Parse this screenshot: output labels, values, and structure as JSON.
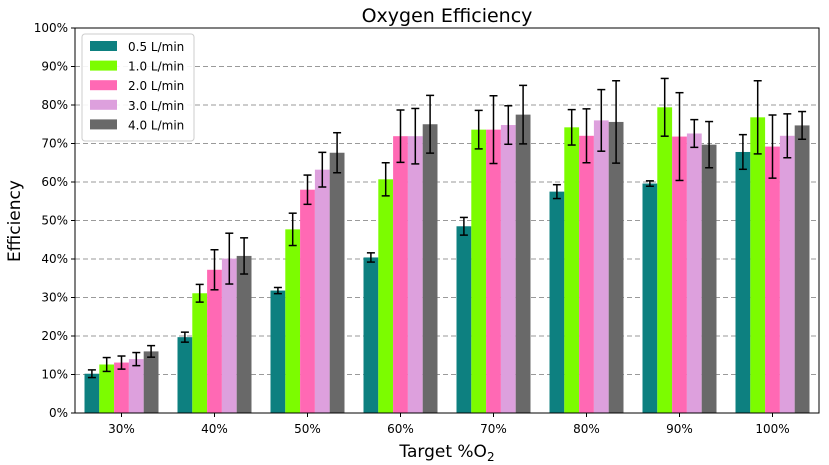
{
  "chart_data": {
    "type": "bar",
    "title": "Oxygen Efficiency",
    "xlabel_main": "Target %O",
    "xlabel_sub": "2",
    "ylabel": "Efficiency",
    "categories": [
      "30%",
      "40%",
      "50%",
      "60%",
      "70%",
      "80%",
      "90%",
      "100%"
    ],
    "ylim": [
      0,
      100
    ],
    "yticks": [
      0,
      10,
      20,
      30,
      40,
      50,
      60,
      70,
      80,
      90,
      100
    ],
    "ytick_labels": [
      "0%",
      "10%",
      "20%",
      "30%",
      "40%",
      "50%",
      "60%",
      "70%",
      "80%",
      "90%",
      "100%"
    ],
    "grid": "horizontal dashed",
    "legend_position": "top-left",
    "series": [
      {
        "name": "0.5 L/min",
        "color": "#0d8080",
        "values": [
          10.2,
          19.7,
          31.8,
          40.4,
          48.5,
          57.5,
          59.6,
          67.8
        ],
        "errors": [
          1.0,
          1.3,
          0.8,
          1.2,
          2.3,
          1.8,
          0.7,
          4.5
        ]
      },
      {
        "name": "1.0 L/min",
        "color": "#7cfc00",
        "values": [
          12.6,
          31.1,
          47.7,
          60.7,
          73.6,
          74.2,
          79.4,
          76.8
        ],
        "errors": [
          1.8,
          2.3,
          4.2,
          4.3,
          5.0,
          4.6,
          7.5,
          9.5
        ]
      },
      {
        "name": "2.0 L/min",
        "color": "#ff69b4",
        "values": [
          13.1,
          37.2,
          58.0,
          71.9,
          73.6,
          72.0,
          71.8,
          69.2
        ],
        "errors": [
          1.7,
          5.2,
          3.8,
          6.8,
          8.8,
          7.0,
          11.4,
          8.2
        ]
      },
      {
        "name": "3.0 L/min",
        "color": "#dda0dd",
        "values": [
          14.0,
          40.1,
          63.2,
          71.9,
          74.8,
          76.0,
          72.6,
          72.0
        ],
        "errors": [
          1.7,
          6.6,
          4.5,
          7.2,
          5.0,
          8.0,
          3.6,
          5.7
        ]
      },
      {
        "name": "4.0 L/min",
        "color": "#696969",
        "values": [
          16.0,
          40.8,
          67.6,
          75.0,
          77.5,
          75.6,
          69.7,
          74.7
        ],
        "errors": [
          1.5,
          4.7,
          5.2,
          7.5,
          7.6,
          10.7,
          6.0,
          3.6
        ]
      }
    ]
  }
}
